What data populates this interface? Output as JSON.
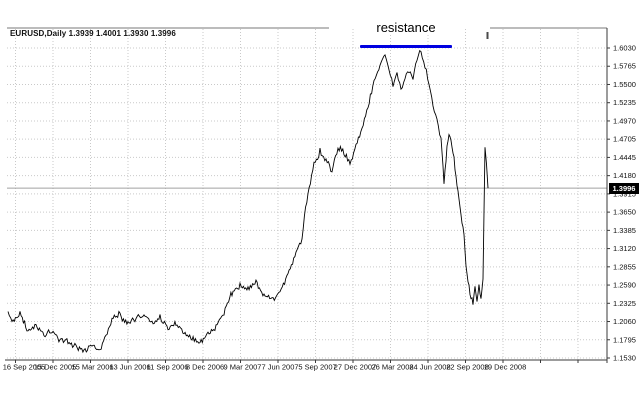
{
  "window": {
    "background": "#ffffff"
  },
  "header": {
    "title_text": "EURUSD,Daily 1.3939 1.4001 1.3930 1.3996"
  },
  "annotation": {
    "label": "resistance",
    "line_color": "#0000e0"
  },
  "price_tag": {
    "value": "1.3996",
    "bg": "#000000",
    "fg": "#ffffff"
  },
  "colors": {
    "grid": "#c9c9c9",
    "border_top": "#7a7a7a",
    "border": "#3a3a3a",
    "series": "#000000",
    "axis_text": "#111111",
    "current_price_line": "#a0a0a0"
  },
  "chart_data": {
    "type": "line",
    "title": "EURUSD,Daily",
    "symbol": "EURUSD",
    "timeframe": "Daily",
    "ohlc": {
      "open": "1.3939",
      "high": "1.4001",
      "low": "1.3930",
      "close": "1.3996"
    },
    "current_price": 1.3996,
    "resistance_level": 1.6,
    "grid": true,
    "ylim": [
      1.153,
      1.603
    ],
    "y_tick_labels": [
      "1.6030",
      "1.5765",
      "1.5500",
      "1.5235",
      "1.4970",
      "1.4705",
      "1.4445",
      "1.4180",
      "1.3915",
      "1.3650",
      "1.3385",
      "1.3120",
      "1.2855",
      "1.2590",
      "1.2325",
      "1.2060",
      "1.1795",
      "1.1530"
    ],
    "x_tick_labels": [
      "16 Sep 2005",
      "15 Dec 2005",
      "15 Mar 2006",
      "13 Jun 2006",
      "11 Sep 2006",
      "8 Dec 2006",
      "9 Mar 2007",
      "7 Jun 2007",
      "5 Sep 2007",
      "27 Dec 2007",
      "26 Mar 2008",
      "24 Jun 2008",
      "22 Sep 2008",
      "19 Dec 2008"
    ],
    "series": {
      "name": "EURUSD close",
      "anchors_x_price": [
        [
          8,
          1.22
        ],
        [
          12,
          1.207
        ],
        [
          20,
          1.215
        ],
        [
          28,
          1.192
        ],
        [
          36,
          1.2
        ],
        [
          44,
          1.185
        ],
        [
          52,
          1.194
        ],
        [
          60,
          1.18
        ],
        [
          68,
          1.176
        ],
        [
          76,
          1.17
        ],
        [
          84,
          1.163
        ],
        [
          92,
          1.172
        ],
        [
          100,
          1.162
        ],
        [
          106,
          1.185
        ],
        [
          112,
          1.21
        ],
        [
          120,
          1.216
        ],
        [
          128,
          1.204
        ],
        [
          136,
          1.212
        ],
        [
          144,
          1.215
        ],
        [
          152,
          1.203
        ],
        [
          160,
          1.212
        ],
        [
          168,
          1.196
        ],
        [
          176,
          1.204
        ],
        [
          184,
          1.192
        ],
        [
          192,
          1.183
        ],
        [
          200,
          1.176
        ],
        [
          208,
          1.188
        ],
        [
          216,
          1.199
        ],
        [
          224,
          1.22
        ],
        [
          232,
          1.247
        ],
        [
          240,
          1.259
        ],
        [
          248,
          1.251
        ],
        [
          256,
          1.263
        ],
        [
          264,
          1.244
        ],
        [
          272,
          1.236
        ],
        [
          280,
          1.25
        ],
        [
          288,
          1.276
        ],
        [
          296,
          1.307
        ],
        [
          302,
          1.33
        ],
        [
          308,
          1.395
        ],
        [
          314,
          1.432
        ],
        [
          320,
          1.452
        ],
        [
          326,
          1.44
        ],
        [
          332,
          1.424
        ],
        [
          338,
          1.458
        ],
        [
          344,
          1.448
        ],
        [
          350,
          1.436
        ],
        [
          356,
          1.46
        ],
        [
          362,
          1.488
        ],
        [
          368,
          1.515
        ],
        [
          374,
          1.552
        ],
        [
          380,
          1.578
        ],
        [
          385,
          1.597
        ],
        [
          389,
          1.572
        ],
        [
          393,
          1.548
        ],
        [
          397,
          1.565
        ],
        [
          401,
          1.54
        ],
        [
          405,
          1.558
        ],
        [
          409,
          1.572
        ],
        [
          413,
          1.56
        ],
        [
          417,
          1.586
        ],
        [
          421,
          1.598
        ],
        [
          425,
          1.578
        ],
        [
          429,
          1.552
        ],
        [
          433,
          1.52
        ],
        [
          437,
          1.5
        ],
        [
          441,
          1.472
        ],
        [
          444,
          1.408
        ],
        [
          447,
          1.46
        ],
        [
          449,
          1.478
        ],
        [
          452,
          1.462
        ],
        [
          455,
          1.43
        ],
        [
          458,
          1.395
        ],
        [
          461,
          1.36
        ],
        [
          464,
          1.33
        ],
        [
          467,
          1.272
        ],
        [
          470,
          1.247
        ],
        [
          473,
          1.233
        ],
        [
          475,
          1.258
        ],
        [
          477,
          1.237
        ],
        [
          479,
          1.256
        ],
        [
          481,
          1.24
        ],
        [
          483,
          1.262
        ],
        [
          485,
          1.465
        ],
        [
          486.5,
          1.43
        ],
        [
          488,
          1.3996
        ]
      ]
    }
  }
}
